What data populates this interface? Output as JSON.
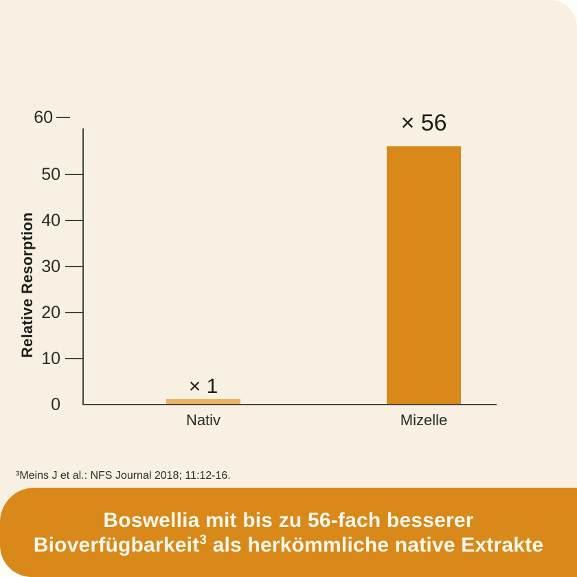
{
  "page": {
    "background": "#f8f0e2",
    "outer_background": "#fdfdf9"
  },
  "chart_data": {
    "type": "bar",
    "title": "",
    "categories": [
      "Nativ",
      "Mizelle"
    ],
    "values": [
      1,
      56
    ],
    "bar_labels": [
      "× 1",
      "× 56"
    ],
    "bar_colors": [
      "#eab362",
      "#d8891a"
    ],
    "xlabel": "",
    "ylabel": "Relative Resorption",
    "yticks": [
      0,
      10,
      20,
      30,
      40,
      50,
      60
    ],
    "ylim": [
      0,
      60
    ],
    "grid": false,
    "legend": false,
    "axis_color": "#45453f",
    "text_color": "#1d1d1b"
  },
  "footnote": "³Meins J et al.: NFS Journal 2018; 11:12-16.",
  "banner": {
    "background": "#d8891a",
    "text_color": "#fdf8ec",
    "line1": "Boswellia mit bis zu 56-fach besserer",
    "line2_prefix": "Bioverfügbarkeit",
    "line2_sup": "3",
    "line2_suffix": " als herkömmliche native Extrakte"
  }
}
